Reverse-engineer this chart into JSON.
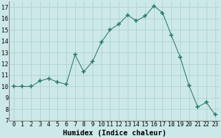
{
  "x": [
    0,
    1,
    2,
    3,
    4,
    5,
    6,
    7,
    8,
    9,
    10,
    11,
    12,
    13,
    14,
    15,
    16,
    17,
    18,
    19,
    20,
    21,
    22,
    23
  ],
  "y": [
    10,
    10,
    10,
    10.5,
    10.7,
    10.4,
    10.2,
    12.8,
    11.3,
    12.2,
    13.9,
    15.0,
    15.5,
    16.3,
    15.8,
    16.2,
    17.1,
    16.5,
    14.5,
    12.6,
    10.1,
    8.2,
    8.6,
    7.5
  ],
  "line_color": "#2e7d6e",
  "marker": "+",
  "marker_size": 4,
  "bg_color": "#cce8e8",
  "grid_color": "#aacccc",
  "xlabel": "Humidex (Indice chaleur)",
  "xlabel_fontsize": 7.5,
  "tick_fontsize": 6,
  "xlim": [
    -0.5,
    23.5
  ],
  "ylim": [
    7,
    17.5
  ],
  "yticks": [
    7,
    8,
    9,
    10,
    11,
    12,
    13,
    14,
    15,
    16,
    17
  ],
  "xticks": [
    0,
    1,
    2,
    3,
    4,
    5,
    6,
    7,
    8,
    9,
    10,
    11,
    12,
    13,
    14,
    15,
    16,
    17,
    18,
    19,
    20,
    21,
    22,
    23
  ]
}
